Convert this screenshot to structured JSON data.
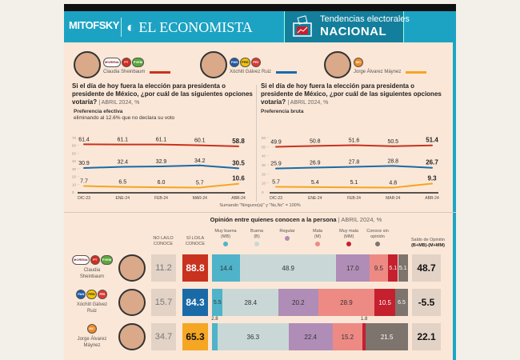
{
  "header": {
    "logo_left": "MITOFSKY",
    "logo_right": "EL ECONOMISTA",
    "title_line1": "Tendencias electorales",
    "title_line2": "NACIONAL"
  },
  "candidates": [
    {
      "name": "Claudia Sheinbaum",
      "color": "#c8321e",
      "parties": [
        "MORENA",
        "PT",
        "PVEM"
      ]
    },
    {
      "name": "Xóchitl Gálvez Ruiz",
      "color": "#1a6aa8",
      "parties": [
        "PAN",
        "PRD",
        "PRI"
      ]
    },
    {
      "name": "Jorge Álvarez Máynez",
      "color": "#f5a623",
      "parties": [
        "MC"
      ]
    }
  ],
  "chart_data": [
    {
      "type": "line",
      "title": "Si el día de hoy fuera la elección para presidenta o presidente de México, ¿por cuál de las siguientes opciones votaría?",
      "title_note": "ABRIL 2024, %",
      "subtitle": "Preferencia efectiva",
      "subtitle2": "eliminando al 12.6% que no declara su voto",
      "categories": [
        "DIC-23",
        "ENE-24",
        "FEB-24",
        "MAR-24",
        "ABR-24"
      ],
      "ylim": [
        0,
        70
      ],
      "yticks": [
        0,
        10,
        20,
        30,
        40,
        50,
        60,
        70
      ],
      "series": [
        {
          "name": "Claudia Sheinbaum",
          "values": [
            61.4,
            61.1,
            61.1,
            60.1,
            58.8
          ]
        },
        {
          "name": "Xóchitl Gálvez Ruiz",
          "values": [
            30.9,
            32.4,
            32.9,
            34.2,
            30.5
          ]
        },
        {
          "name": "Jorge Álvarez Máynez",
          "values": [
            7.7,
            6.5,
            6.0,
            5.7,
            10.6
          ]
        }
      ]
    },
    {
      "type": "line",
      "title": "Si el día de hoy fuera la elección para presidenta o presidente de México, ¿por cuál de las siguientes opciones votaría?",
      "title_note": "ABRIL 2024, %",
      "subtitle": "Preferencia bruta",
      "categories": [
        "DIC-23",
        "ENE-24",
        "FEB-24",
        "MAR-24",
        "ABR-24"
      ],
      "ylim": [
        0,
        60
      ],
      "yticks": [
        0,
        10,
        20,
        30,
        40,
        50,
        60
      ],
      "series": [
        {
          "name": "Claudia Sheinbaum",
          "values": [
            49.9,
            50.8,
            51.6,
            50.5,
            51.4
          ]
        },
        {
          "name": "Xóchitl Gálvez Ruiz",
          "values": [
            25.9,
            26.9,
            27.8,
            28.8,
            26.7
          ]
        },
        {
          "name": "Jorge Álvarez Máynez",
          "values": [
            5.7,
            5.4,
            5.1,
            4.8,
            9.3
          ]
        }
      ]
    },
    {
      "type": "bar",
      "stacked": true,
      "title": "Opinión entre quienes conocen a la persona",
      "title_note": "ABRIL 2024, %",
      "col_no": "NO LA/LO CONOCE",
      "col_si": "SÍ LO/LA CONOCE",
      "col_saldo": "Saldo de Opinión",
      "col_saldo_formula": "(B+MB)-(M+MM)",
      "categories": [
        {
          "label": "Muy buena",
          "abbr": "(MB)",
          "color": "#4fb3c9"
        },
        {
          "label": "Buena",
          "abbr": "(B)",
          "color": "#c9d8d6"
        },
        {
          "label": "Regular",
          "abbr": "",
          "color": "#b08db6"
        },
        {
          "label": "Mala",
          "abbr": "(M)",
          "color": "#ee8a84"
        },
        {
          "label": "Muy mala",
          "abbr": "(MM)",
          "color": "#c4202e"
        },
        {
          "label": "Conoce sin",
          "abbr": "opinión",
          "color": "#7d746e"
        }
      ],
      "rows": [
        {
          "name": "Claudia Sheinbaum",
          "no": "11.2",
          "si": "88.8",
          "values": [
            14.4,
            48.9,
            17.0,
            9.5,
            5.1,
            5.1
          ],
          "saldo": "48.7"
        },
        {
          "name": "Xóchitl Gálvez Ruiz",
          "no": "15.7",
          "si": "84.3",
          "values": [
            5.5,
            28.4,
            20.2,
            28.9,
            10.5,
            6.5
          ],
          "saldo": "-5.5"
        },
        {
          "name": "Jorge Álvarez Máynez",
          "no": "34.7",
          "si": "65.3",
          "values": [
            2.8,
            36.3,
            22.4,
            15.2,
            1.8,
            21.5
          ],
          "saldo": "22.1"
        }
      ]
    }
  ],
  "footnote": "Sumando \"Ninguno(a)\" y \"Ns,Nc\" = 100%"
}
